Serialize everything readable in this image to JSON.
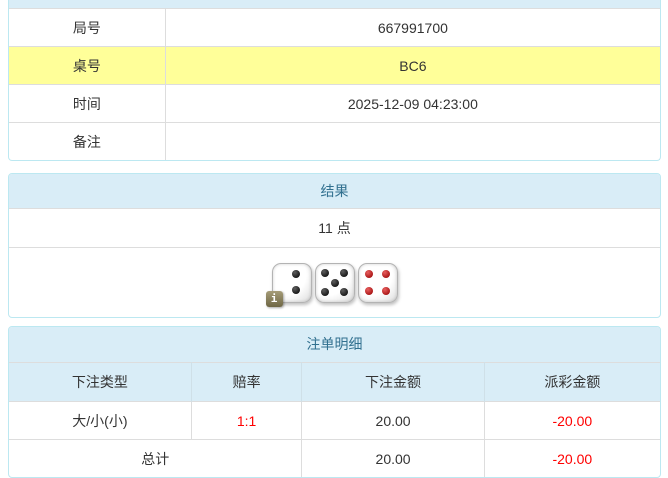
{
  "colors": {
    "header_bg": "#d9edf7",
    "header_text": "#31708f",
    "panel_border": "#bce8f1",
    "row_border": "#dddddd",
    "highlight_row": "#ffff99",
    "negative_text": "#ff0000",
    "body_text": "#333333"
  },
  "game_info": {
    "rows": [
      {
        "label": "局号",
        "value": "667991700"
      },
      {
        "label": "桌号",
        "value": "BC6",
        "highlighted": true
      },
      {
        "label": "时间",
        "value": "2025-12-09 04:23:00"
      },
      {
        "label": "备注",
        "value": ""
      }
    ]
  },
  "result": {
    "title": "结果",
    "points": "11 点",
    "dice": [
      {
        "value": 2,
        "color": "black"
      },
      {
        "value": 5,
        "color": "black"
      },
      {
        "value": 4,
        "color": "red"
      }
    ],
    "info_badge": "i"
  },
  "bets": {
    "title": "注单明细",
    "columns": [
      "下注类型",
      "赔率",
      "下注金额",
      "派彩金额"
    ],
    "rows": [
      {
        "type": "大/小(小)",
        "odds": "1:1",
        "amount": "20.00",
        "payout": "-20.00"
      }
    ],
    "total": {
      "label": "总计",
      "amount": "20.00",
      "payout": "-20.00"
    }
  }
}
